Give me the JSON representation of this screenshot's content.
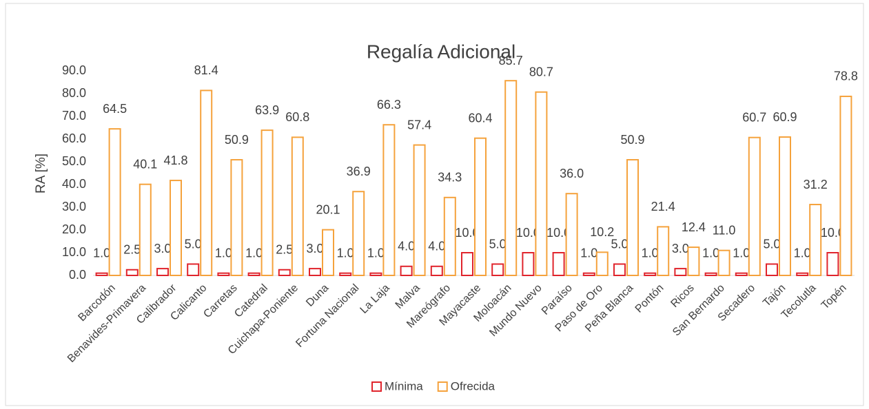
{
  "chart_data": {
    "type": "bar",
    "title": "Regalía Adicional",
    "y_label": "RA [%]",
    "categories": [
      "Barcodón",
      "Benavides-Primavera",
      "Calibrador",
      "Calicanto",
      "Carretas",
      "Catedral",
      "Cuichapa-Poniente",
      "Duna",
      "Fortuna Nacional",
      "La Laja",
      "Malva",
      "Mareógrafo",
      "Mayacaste",
      "Moloacán",
      "Mundo Nuevo",
      "Paraíso",
      "Paso de Oro",
      "Peña Blanca",
      "Pontón",
      "Ricos",
      "San Bernardo",
      "Secadero",
      "Tajón",
      "Tecolutla",
      "Topén"
    ],
    "series": [
      {
        "name": "Mínima",
        "color": "#e0242c",
        "values": [
          1,
          2.5,
          3,
          5,
          1,
          1,
          2.5,
          3,
          1,
          1,
          4,
          4,
          10,
          5,
          10,
          10,
          1,
          5,
          1,
          3,
          1,
          1,
          5,
          1,
          10
        ],
        "value_labels": [
          "1.0",
          "2.5",
          "3.0",
          "5.0",
          "1.0",
          "1.0",
          "2.5",
          "3.0",
          "1.0",
          "1.0",
          "4.0",
          "4.0",
          "10.0",
          "5.0",
          "10.0",
          "10.0",
          "1.0",
          "5.0",
          "1.0",
          "3.0",
          "1.0",
          "1.0",
          "5.0",
          "1.0",
          "10.0"
        ]
      },
      {
        "name": "Ofrecida",
        "color": "#f5a23c",
        "values": [
          64.5,
          40.1,
          41.8,
          81.4,
          50.9,
          63.9,
          60.8,
          20.1,
          36.9,
          66.3,
          57.4,
          34.3,
          60.4,
          85.7,
          80.7,
          36,
          10.2,
          50.9,
          21.4,
          12.4,
          11,
          60.7,
          60.9,
          31.2,
          78.8
        ],
        "value_labels": [
          "64.5",
          "40.1",
          "41.8",
          "81.4",
          "50.9",
          "63.9",
          "60.8",
          "20.1",
          "36.9",
          "66.3",
          "57.4",
          "34.3",
          "60.4",
          "85.7",
          "80.7",
          "36.0",
          "10.2",
          "50.9",
          "21.4",
          "12.4",
          "11.0",
          "60.7",
          "60.9",
          "31.2",
          "78.8"
        ]
      }
    ],
    "ylim": [
      0,
      90
    ],
    "yticks": [
      {
        "value": 0,
        "label": "0.0"
      },
      {
        "value": 10,
        "label": "10.0"
      },
      {
        "value": 20,
        "label": "20.0"
      },
      {
        "value": 30,
        "label": "30.0"
      },
      {
        "value": 40,
        "label": "40.0"
      },
      {
        "value": 50,
        "label": "50.0"
      },
      {
        "value": 60,
        "label": "60.0"
      },
      {
        "value": 70,
        "label": "70.0"
      },
      {
        "value": 80,
        "label": "80.0"
      },
      {
        "value": 90,
        "label": "90.0"
      }
    ],
    "legend": "bottom"
  }
}
